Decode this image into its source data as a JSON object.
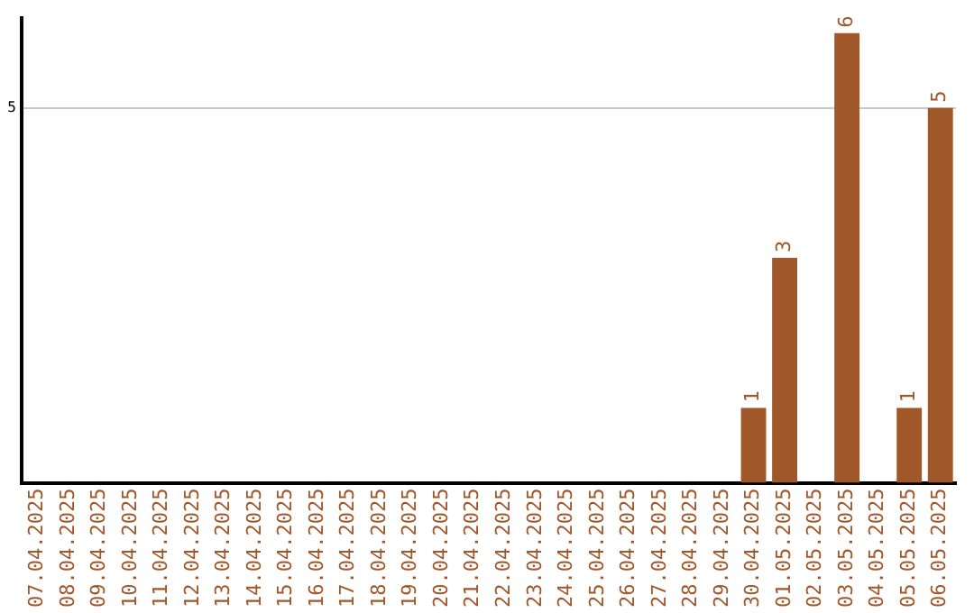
{
  "chart_data": {
    "type": "bar",
    "categories": [
      "07.04.2025",
      "08.04.2025",
      "09.04.2025",
      "10.04.2025",
      "11.04.2025",
      "12.04.2025",
      "13.04.2025",
      "14.04.2025",
      "15.04.2025",
      "16.04.2025",
      "17.04.2025",
      "18.04.2025",
      "19.04.2025",
      "20.04.2025",
      "21.04.2025",
      "22.04.2025",
      "23.04.2025",
      "24.04.2025",
      "25.04.2025",
      "26.04.2025",
      "27.04.2025",
      "28.04.2025",
      "29.04.2025",
      "30.04.2025",
      "01.05.2025",
      "02.05.2025",
      "03.05.2025",
      "04.05.2025",
      "05.05.2025",
      "06.05.2025"
    ],
    "values": [
      null,
      null,
      null,
      null,
      null,
      null,
      null,
      null,
      null,
      null,
      null,
      null,
      null,
      null,
      null,
      null,
      null,
      null,
      null,
      null,
      null,
      null,
      null,
      1,
      3,
      null,
      6,
      null,
      1,
      5
    ],
    "data_labels": true,
    "color": "#a0572a",
    "ylim": [
      0,
      6.2
    ],
    "yticks": [
      5
    ],
    "grid": "y"
  }
}
